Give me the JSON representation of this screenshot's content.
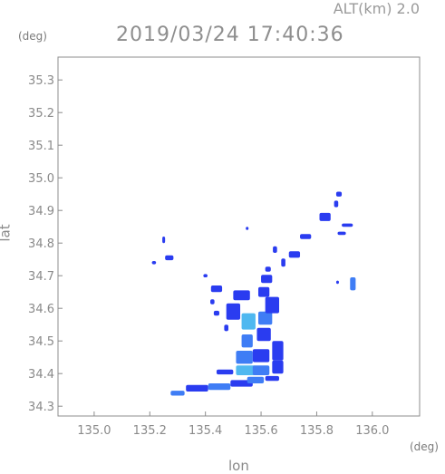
{
  "header": {
    "altitude": "ALT(km) 2.0",
    "timestamp": "2019/03/24 17:40:36"
  },
  "chart_data": {
    "type": "heatmap",
    "title": "2019/03/24 17:40:36",
    "subtitle": "ALT(km) 2.0",
    "xlabel": "lon",
    "ylabel": "lat",
    "xunit": "(deg)",
    "yunit": "(deg)",
    "xlim": [
      134.87,
      136.17
    ],
    "ylim": [
      34.27,
      35.37
    ],
    "xticks": [
      "135.0",
      "135.2",
      "135.4",
      "135.6",
      "135.8",
      "136.0"
    ],
    "yticks": [
      "34.3",
      "34.4",
      "34.5",
      "34.6",
      "34.7",
      "34.8",
      "34.9",
      "35.0",
      "35.1",
      "35.2",
      "35.3"
    ],
    "colors": {
      "low": "#2a3cf0",
      "mid": "#3f7df5",
      "high": "#4fb8f0"
    },
    "blobs": [
      {
        "lon": 135.3,
        "lat": 34.34,
        "w": 0.05,
        "h": 0.015,
        "level": "mid"
      },
      {
        "lon": 135.37,
        "lat": 34.355,
        "w": 0.08,
        "h": 0.02,
        "level": "low"
      },
      {
        "lon": 135.45,
        "lat": 34.36,
        "w": 0.08,
        "h": 0.02,
        "level": "mid"
      },
      {
        "lon": 135.53,
        "lat": 34.37,
        "w": 0.08,
        "h": 0.02,
        "level": "low"
      },
      {
        "lon": 135.58,
        "lat": 34.38,
        "w": 0.06,
        "h": 0.02,
        "level": "mid"
      },
      {
        "lon": 135.64,
        "lat": 34.385,
        "w": 0.05,
        "h": 0.015,
        "level": "low"
      },
      {
        "lon": 135.47,
        "lat": 34.405,
        "w": 0.06,
        "h": 0.015,
        "level": "low"
      },
      {
        "lon": 135.545,
        "lat": 34.41,
        "w": 0.07,
        "h": 0.03,
        "level": "high"
      },
      {
        "lon": 135.6,
        "lat": 34.41,
        "w": 0.06,
        "h": 0.03,
        "level": "mid"
      },
      {
        "lon": 135.66,
        "lat": 34.42,
        "w": 0.04,
        "h": 0.04,
        "level": "low"
      },
      {
        "lon": 135.54,
        "lat": 34.45,
        "w": 0.06,
        "h": 0.04,
        "level": "mid"
      },
      {
        "lon": 135.6,
        "lat": 34.455,
        "w": 0.06,
        "h": 0.04,
        "level": "low"
      },
      {
        "lon": 135.66,
        "lat": 34.47,
        "w": 0.04,
        "h": 0.06,
        "level": "low"
      },
      {
        "lon": 135.55,
        "lat": 34.5,
        "w": 0.04,
        "h": 0.04,
        "level": "mid"
      },
      {
        "lon": 135.61,
        "lat": 34.52,
        "w": 0.05,
        "h": 0.04,
        "level": "low"
      },
      {
        "lon": 135.555,
        "lat": 34.56,
        "w": 0.05,
        "h": 0.05,
        "level": "high"
      },
      {
        "lon": 135.615,
        "lat": 34.57,
        "w": 0.05,
        "h": 0.04,
        "level": "mid"
      },
      {
        "lon": 135.5,
        "lat": 34.59,
        "w": 0.05,
        "h": 0.05,
        "level": "low"
      },
      {
        "lon": 135.64,
        "lat": 34.61,
        "w": 0.05,
        "h": 0.05,
        "level": "low"
      },
      {
        "lon": 135.53,
        "lat": 34.64,
        "w": 0.06,
        "h": 0.03,
        "level": "low"
      },
      {
        "lon": 135.61,
        "lat": 34.65,
        "w": 0.04,
        "h": 0.03,
        "level": "low"
      },
      {
        "lon": 135.44,
        "lat": 34.66,
        "w": 0.04,
        "h": 0.02,
        "level": "low"
      },
      {
        "lon": 135.44,
        "lat": 34.585,
        "w": 0.02,
        "h": 0.015,
        "level": "low"
      },
      {
        "lon": 135.475,
        "lat": 34.54,
        "w": 0.015,
        "h": 0.02,
        "level": "low"
      },
      {
        "lon": 135.425,
        "lat": 34.62,
        "w": 0.015,
        "h": 0.015,
        "level": "low"
      },
      {
        "lon": 135.62,
        "lat": 34.69,
        "w": 0.04,
        "h": 0.025,
        "level": "low"
      },
      {
        "lon": 135.4,
        "lat": 34.7,
        "w": 0.015,
        "h": 0.01,
        "level": "low"
      },
      {
        "lon": 135.27,
        "lat": 34.755,
        "w": 0.03,
        "h": 0.015,
        "level": "low"
      },
      {
        "lon": 135.215,
        "lat": 34.74,
        "w": 0.015,
        "h": 0.01,
        "level": "low"
      },
      {
        "lon": 135.25,
        "lat": 34.81,
        "w": 0.01,
        "h": 0.02,
        "level": "low"
      },
      {
        "lon": 135.65,
        "lat": 34.78,
        "w": 0.015,
        "h": 0.02,
        "level": "low"
      },
      {
        "lon": 135.625,
        "lat": 34.72,
        "w": 0.02,
        "h": 0.015,
        "level": "low"
      },
      {
        "lon": 135.72,
        "lat": 34.765,
        "w": 0.04,
        "h": 0.02,
        "level": "low"
      },
      {
        "lon": 135.68,
        "lat": 34.74,
        "w": 0.015,
        "h": 0.025,
        "level": "low"
      },
      {
        "lon": 135.76,
        "lat": 34.82,
        "w": 0.04,
        "h": 0.015,
        "level": "low"
      },
      {
        "lon": 135.83,
        "lat": 34.88,
        "w": 0.04,
        "h": 0.025,
        "level": "low"
      },
      {
        "lon": 135.88,
        "lat": 34.95,
        "w": 0.02,
        "h": 0.015,
        "level": "low"
      },
      {
        "lon": 135.87,
        "lat": 34.92,
        "w": 0.015,
        "h": 0.02,
        "level": "low"
      },
      {
        "lon": 135.91,
        "lat": 34.855,
        "w": 0.04,
        "h": 0.01,
        "level": "low"
      },
      {
        "lon": 135.89,
        "lat": 34.83,
        "w": 0.03,
        "h": 0.01,
        "level": "low"
      },
      {
        "lon": 135.93,
        "lat": 34.675,
        "w": 0.02,
        "h": 0.04,
        "level": "mid"
      },
      {
        "lon": 135.875,
        "lat": 34.68,
        "w": 0.01,
        "h": 0.01,
        "level": "low"
      },
      {
        "lon": 135.55,
        "lat": 34.845,
        "w": 0.01,
        "h": 0.01,
        "level": "low"
      }
    ]
  }
}
